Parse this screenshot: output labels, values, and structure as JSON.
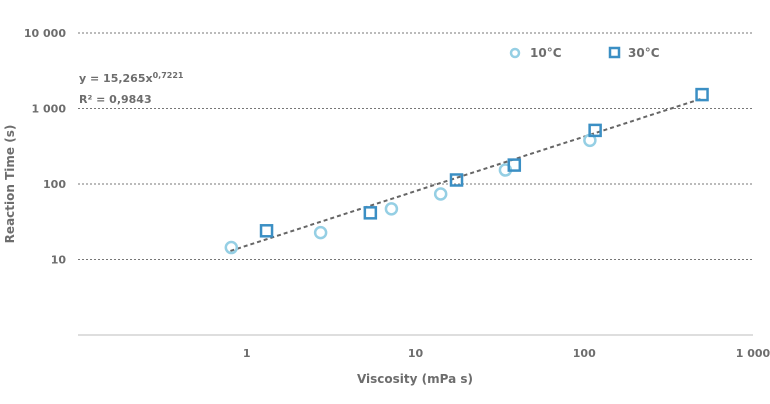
{
  "chart_data": {
    "type": "scatter",
    "title": "",
    "xlabel": "Viscosity (mPa s)",
    "ylabel": "Reaction Time (s)",
    "x_scale": "log",
    "y_scale": "log",
    "xlim": [
      0.1,
      1000
    ],
    "ylim": [
      1,
      10000
    ],
    "x_ticks": [
      {
        "v": 1,
        "label": "1"
      },
      {
        "v": 10,
        "label": "10"
      },
      {
        "v": 100,
        "label": "100"
      },
      {
        "v": 1000,
        "label": "1 000"
      }
    ],
    "y_ticks": [
      {
        "v": 10,
        "label": "10"
      },
      {
        "v": 100,
        "label": "100"
      },
      {
        "v": 1000,
        "label": "1 000"
      },
      {
        "v": 10000,
        "label": "10 000"
      }
    ],
    "grid": "horizontal dotted",
    "legend_position": "top-right",
    "series": [
      {
        "name": "10°C",
        "marker": "circle",
        "color": "#95cfe4",
        "x": [
          0.81,
          2.74,
          7.2,
          14.1,
          34.1,
          108
        ],
        "y": [
          14.4,
          22.7,
          46.9,
          73.8,
          153,
          379
        ]
      },
      {
        "name": "30°C",
        "marker": "square",
        "color": "#3b8fc4",
        "x": [
          1.31,
          5.4,
          17.5,
          38.5,
          116,
          499
        ],
        "y": [
          24,
          41.5,
          113,
          178,
          513,
          1528
        ]
      }
    ],
    "trendline": {
      "type": "power",
      "a": 15.265,
      "b": 0.7221,
      "x_range": [
        0.8,
        500
      ],
      "color": "#666666",
      "equation_prefix": "y = 15,265x",
      "equation_exponent": "0,7221",
      "r2_label": "R² = 0,9843"
    }
  }
}
